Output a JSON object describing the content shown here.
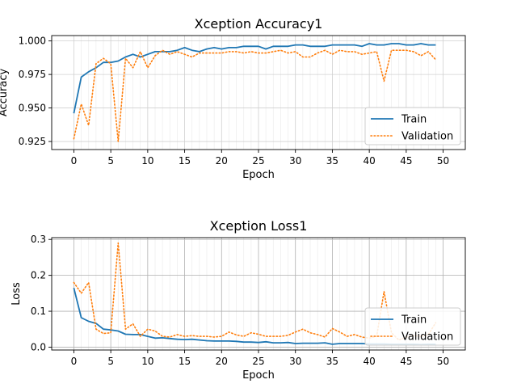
{
  "chart_data": [
    {
      "type": "line",
      "title": "Xception Accuracy1",
      "xlabel": "Epoch",
      "ylabel": "Accuracy",
      "xlim": [
        -3,
        53
      ],
      "ylim": [
        0.919,
        1.004
      ],
      "xticks": [
        0,
        5,
        10,
        15,
        20,
        25,
        30,
        35,
        40,
        45,
        50
      ],
      "yticks": [
        0.925,
        0.95,
        0.975,
        1.0
      ],
      "ytick_labels": [
        "0.925",
        "0.950",
        "0.975",
        "1.000"
      ],
      "grid": true,
      "legend_position": "lower-right",
      "x": [
        0,
        1,
        2,
        3,
        4,
        5,
        6,
        7,
        8,
        9,
        10,
        11,
        12,
        13,
        14,
        15,
        16,
        17,
        18,
        19,
        20,
        21,
        22,
        23,
        24,
        25,
        26,
        27,
        28,
        29,
        30,
        31,
        32,
        33,
        34,
        35,
        36,
        37,
        38,
        39,
        40,
        41,
        42,
        43,
        44,
        45,
        46,
        47,
        48,
        49
      ],
      "series": [
        {
          "name": "Train",
          "style": "solid",
          "color": "#1f77b4",
          "values": [
            0.946,
            0.973,
            0.977,
            0.98,
            0.984,
            0.984,
            0.985,
            0.988,
            0.99,
            0.988,
            0.99,
            0.992,
            0.992,
            0.992,
            0.993,
            0.995,
            0.993,
            0.992,
            0.994,
            0.995,
            0.994,
            0.995,
            0.995,
            0.996,
            0.996,
            0.996,
            0.994,
            0.996,
            0.996,
            0.996,
            0.997,
            0.997,
            0.996,
            0.996,
            0.996,
            0.997,
            0.997,
            0.997,
            0.997,
            0.996,
            0.998,
            0.997,
            0.997,
            0.998,
            0.998,
            0.997,
            0.997,
            0.998,
            0.997,
            0.997
          ]
        },
        {
          "name": "Validation",
          "style": "dotted",
          "color": "#ff7f0e",
          "values": [
            0.927,
            0.953,
            0.937,
            0.983,
            0.987,
            0.983,
            0.925,
            0.987,
            0.98,
            0.992,
            0.98,
            0.989,
            0.993,
            0.99,
            0.992,
            0.99,
            0.988,
            0.991,
            0.991,
            0.991,
            0.991,
            0.992,
            0.992,
            0.991,
            0.992,
            0.991,
            0.991,
            0.992,
            0.993,
            0.991,
            0.992,
            0.988,
            0.988,
            0.991,
            0.993,
            0.99,
            0.993,
            0.992,
            0.992,
            0.99,
            0.991,
            0.992,
            0.97,
            0.993,
            0.993,
            0.993,
            0.992,
            0.989,
            0.992,
            0.986
          ]
        }
      ]
    },
    {
      "type": "line",
      "title": "Xception Loss1",
      "xlabel": "Epoch",
      "ylabel": "Loss",
      "xlim": [
        -3,
        53
      ],
      "ylim": [
        -0.008,
        0.305
      ],
      "xticks": [
        0,
        5,
        10,
        15,
        20,
        25,
        30,
        35,
        40,
        45,
        50
      ],
      "yticks": [
        0.0,
        0.1,
        0.2,
        0.3
      ],
      "ytick_labels": [
        "0.0",
        "0.1",
        "0.2",
        "0.3"
      ],
      "grid": true,
      "legend_position": "lower-right",
      "x": [
        0,
        1,
        2,
        3,
        4,
        5,
        6,
        7,
        8,
        9,
        10,
        11,
        12,
        13,
        14,
        15,
        16,
        17,
        18,
        19,
        20,
        21,
        22,
        23,
        24,
        25,
        26,
        27,
        28,
        29,
        30,
        31,
        32,
        33,
        34,
        35,
        36,
        37,
        38,
        39,
        40,
        41,
        42,
        43,
        44,
        45,
        46,
        47,
        48,
        49
      ],
      "series": [
        {
          "name": "Train",
          "style": "solid",
          "color": "#1f77b4",
          "values": [
            0.165,
            0.082,
            0.072,
            0.066,
            0.05,
            0.048,
            0.045,
            0.036,
            0.035,
            0.035,
            0.03,
            0.025,
            0.026,
            0.024,
            0.022,
            0.021,
            0.022,
            0.02,
            0.018,
            0.017,
            0.017,
            0.017,
            0.016,
            0.014,
            0.014,
            0.013,
            0.015,
            0.012,
            0.012,
            0.013,
            0.01,
            0.011,
            0.011,
            0.011,
            0.012,
            0.008,
            0.01,
            0.01,
            0.01,
            0.01,
            0.009,
            0.009,
            0.009,
            0.008,
            0.008,
            0.008,
            0.008,
            0.007,
            0.008,
            0.008
          ]
        },
        {
          "name": "Validation",
          "style": "dotted",
          "color": "#ff7f0e",
          "values": [
            0.18,
            0.15,
            0.18,
            0.05,
            0.038,
            0.04,
            0.29,
            0.05,
            0.065,
            0.03,
            0.05,
            0.045,
            0.03,
            0.028,
            0.035,
            0.03,
            0.032,
            0.03,
            0.03,
            0.028,
            0.03,
            0.042,
            0.034,
            0.03,
            0.04,
            0.036,
            0.03,
            0.03,
            0.03,
            0.033,
            0.042,
            0.05,
            0.04,
            0.035,
            0.028,
            0.052,
            0.042,
            0.03,
            0.035,
            0.028,
            0.025,
            0.03,
            0.155,
            0.04,
            0.02,
            0.028,
            0.032,
            0.03,
            0.035,
            0.068
          ]
        }
      ]
    }
  ]
}
